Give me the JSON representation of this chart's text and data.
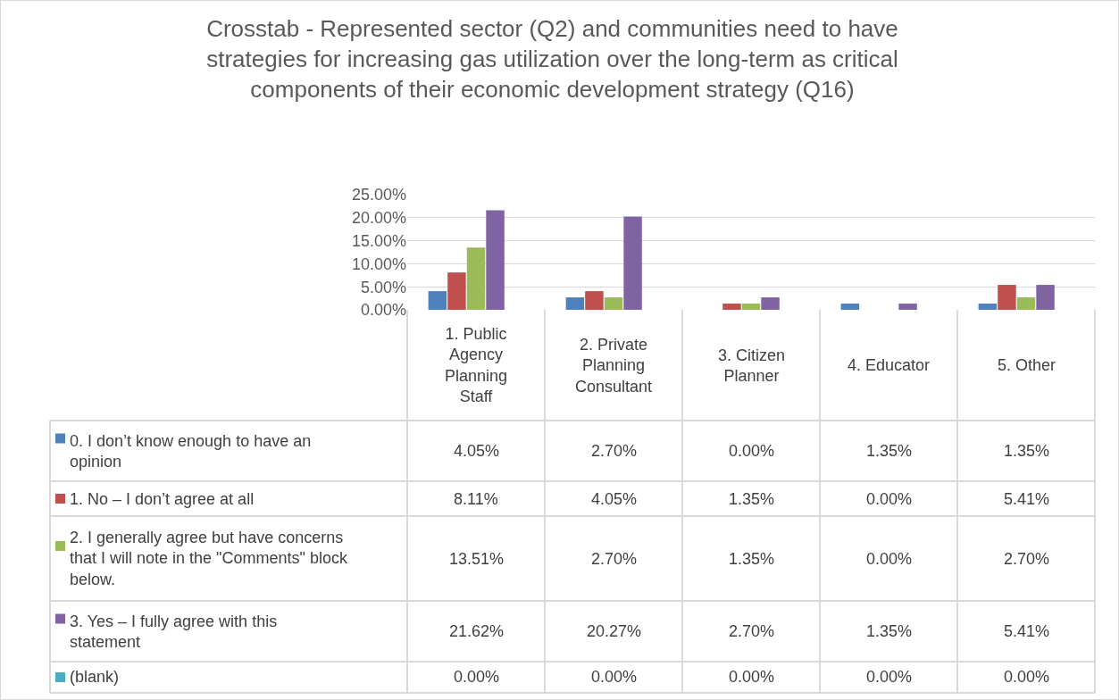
{
  "chart_data": {
    "type": "bar",
    "title": "Crosstab - Represented sector (Q2) and communities need to have strategies for increasing gas utilization over the long-term as critical components of their economic development strategy (Q16)",
    "categories": [
      "1. Public Agency Planning Staff",
      "2. Private Planning Consultant",
      "3. Citizen Planner",
      "4. Educator",
      "5. Other"
    ],
    "series": [
      {
        "name": "0. I don’t know enough to have an opinion",
        "color": "#4f81bd",
        "values": [
          4.05,
          2.7,
          0.0,
          1.35,
          1.35
        ],
        "value_labels": [
          "4.05%",
          "2.70%",
          "0.00%",
          "1.35%",
          "1.35%"
        ]
      },
      {
        "name": "1. No – I don’t agree at all",
        "color": "#c0504d",
        "values": [
          8.11,
          4.05,
          1.35,
          0.0,
          5.41
        ],
        "value_labels": [
          "8.11%",
          "4.05%",
          "1.35%",
          "0.00%",
          "5.41%"
        ]
      },
      {
        "name": "2. I generally agree but have concerns that I will note in the \"Comments\" block below.",
        "color": "#9bbb59",
        "values": [
          13.51,
          2.7,
          1.35,
          0.0,
          2.7
        ],
        "value_labels": [
          "13.51%",
          "2.70%",
          "1.35%",
          "0.00%",
          "2.70%"
        ]
      },
      {
        "name": "3. Yes – I fully agree with this statement",
        "color": "#8064a2",
        "values": [
          21.62,
          20.27,
          2.7,
          1.35,
          5.41
        ],
        "value_labels": [
          "21.62%",
          "20.27%",
          "2.70%",
          "1.35%",
          "5.41%"
        ]
      },
      {
        "name": "(blank)",
        "color": "#4bacc6",
        "values": [
          0.0,
          0.0,
          0.0,
          0.0,
          0.0
        ],
        "value_labels": [
          "0.00%",
          "0.00%",
          "0.00%",
          "0.00%",
          "0.00%"
        ]
      }
    ],
    "ylim": [
      0,
      25
    ],
    "yticks": [
      {
        "value": 0,
        "label": "0.00%"
      },
      {
        "value": 5,
        "label": "5.00%"
      },
      {
        "value": 10,
        "label": "10.00%"
      },
      {
        "value": 15,
        "label": "15.00%"
      },
      {
        "value": 20,
        "label": "20.00%"
      },
      {
        "value": 25,
        "label": "25.00%"
      }
    ],
    "grid": "y",
    "legend": "bottom"
  }
}
